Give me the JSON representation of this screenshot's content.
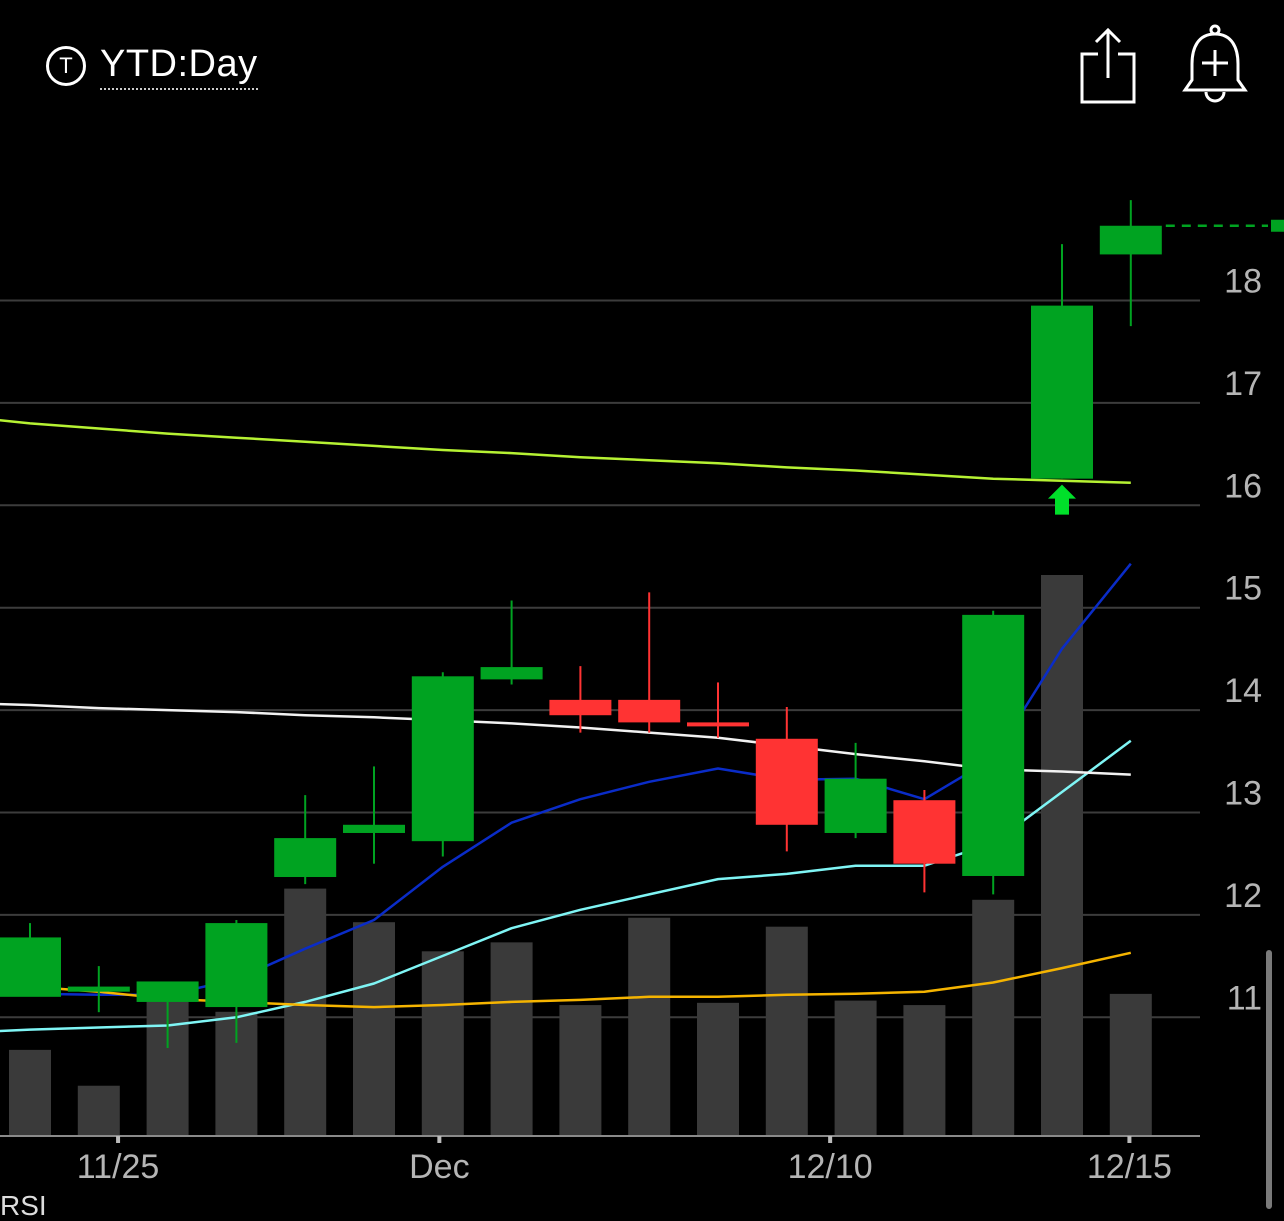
{
  "header": {
    "range_icon": "T",
    "range_label": "YTD:Day",
    "share_icon": "share-icon",
    "alert_icon": "bell-plus-icon"
  },
  "footer": {
    "rsi_label": "RSI"
  },
  "chart_data": {
    "type": "candlestick",
    "x_tick_labels": [
      "11/25",
      "Dec",
      "12/10",
      "12/15"
    ],
    "y_tick_labels": [
      "18",
      "17",
      "16",
      "15",
      "14",
      "13",
      "12",
      "11"
    ],
    "ylim": [
      9.8,
      19.6
    ],
    "grid": true,
    "colors": {
      "up": "#00A321",
      "down": "#FF3333",
      "volume": "#3A3A3A",
      "grid": "#3c3c3c",
      "axis_text": "#b5b5b5"
    },
    "candles": [
      {
        "o": 11.2,
        "h": 11.92,
        "l": 11.25,
        "c": 11.78
      },
      {
        "o": 11.25,
        "h": 11.5,
        "l": 11.05,
        "c": 11.3
      },
      {
        "o": 11.15,
        "h": 11.35,
        "l": 10.7,
        "c": 11.35
      },
      {
        "o": 11.1,
        "h": 11.95,
        "l": 10.75,
        "c": 11.92
      },
      {
        "o": 12.37,
        "h": 13.17,
        "l": 12.3,
        "c": 12.75
      },
      {
        "o": 12.8,
        "h": 13.45,
        "l": 12.5,
        "c": 12.88
      },
      {
        "o": 12.72,
        "h": 14.37,
        "l": 12.57,
        "c": 14.33
      },
      {
        "o": 14.3,
        "h": 15.07,
        "l": 14.25,
        "c": 14.42
      },
      {
        "o": 14.1,
        "h": 14.43,
        "l": 13.78,
        "c": 13.95
      },
      {
        "o": 14.1,
        "h": 15.15,
        "l": 13.78,
        "c": 13.88
      },
      {
        "o": 13.88,
        "h": 14.27,
        "l": 13.73,
        "c": 13.85
      },
      {
        "o": 13.72,
        "h": 14.03,
        "l": 12.62,
        "c": 12.88
      },
      {
        "o": 12.8,
        "h": 13.68,
        "l": 12.75,
        "c": 13.33
      },
      {
        "o": 13.12,
        "h": 13.22,
        "l": 12.22,
        "c": 12.5
      },
      {
        "o": 12.38,
        "h": 14.97,
        "l": 12.2,
        "c": 14.93
      },
      {
        "o": 16.26,
        "h": 18.55,
        "l": 16.26,
        "c": 17.95
      },
      {
        "o": 18.45,
        "h": 18.98,
        "l": 17.75,
        "c": 18.73
      }
    ],
    "volume": [
      0.38,
      0.22,
      0.62,
      0.55,
      1.1,
      0.95,
      0.82,
      0.86,
      0.58,
      0.97,
      0.59,
      0.93,
      0.6,
      0.58,
      1.05,
      2.5,
      0.63
    ],
    "last_price": 18.73,
    "signal_arrow": {
      "index": 15,
      "direction": "up",
      "color": "#00E02A"
    },
    "moving_averages": [
      {
        "color": "#0A2CC8",
        "points": [
          [
            -1,
            11.23
          ],
          [
            0,
            11.23
          ],
          [
            1,
            11.22
          ],
          [
            2,
            11.22
          ],
          [
            3,
            11.37
          ],
          [
            4,
            11.67
          ],
          [
            5,
            11.95
          ],
          [
            6,
            12.47
          ],
          [
            7,
            12.9
          ],
          [
            8,
            13.13
          ],
          [
            9,
            13.3
          ],
          [
            10,
            13.43
          ],
          [
            11,
            13.32
          ],
          [
            12,
            13.33
          ],
          [
            13,
            13.13
          ],
          [
            14,
            13.53
          ],
          [
            15,
            14.6
          ],
          [
            16,
            15.43
          ]
        ]
      },
      {
        "color": "#7FF5F5",
        "points": [
          [
            -1,
            10.85
          ],
          [
            0,
            10.88
          ],
          [
            1,
            10.9
          ],
          [
            2,
            10.92
          ],
          [
            3,
            11.0
          ],
          [
            4,
            11.15
          ],
          [
            5,
            11.33
          ],
          [
            6,
            11.6
          ],
          [
            7,
            11.87
          ],
          [
            8,
            12.05
          ],
          [
            9,
            12.2
          ],
          [
            10,
            12.35
          ],
          [
            11,
            12.4
          ],
          [
            12,
            12.48
          ],
          [
            13,
            12.48
          ],
          [
            14,
            12.7
          ],
          [
            15,
            13.2
          ],
          [
            16,
            13.7
          ]
        ]
      },
      {
        "color": "#F2F2F2",
        "points": [
          [
            -1,
            14.07
          ],
          [
            0,
            14.05
          ],
          [
            1,
            14.02
          ],
          [
            2,
            14.0
          ],
          [
            3,
            13.98
          ],
          [
            4,
            13.95
          ],
          [
            5,
            13.93
          ],
          [
            6,
            13.9
          ],
          [
            7,
            13.87
          ],
          [
            8,
            13.83
          ],
          [
            9,
            13.78
          ],
          [
            10,
            13.73
          ],
          [
            11,
            13.65
          ],
          [
            12,
            13.57
          ],
          [
            13,
            13.5
          ],
          [
            14,
            13.42
          ],
          [
            15,
            13.4
          ],
          [
            16,
            13.37
          ]
        ]
      },
      {
        "color": "#F5B400",
        "points": [
          [
            -1,
            11.33
          ],
          [
            0,
            11.3
          ],
          [
            1,
            11.25
          ],
          [
            2,
            11.18
          ],
          [
            3,
            11.15
          ],
          [
            4,
            11.12
          ],
          [
            5,
            11.1
          ],
          [
            6,
            11.12
          ],
          [
            7,
            11.15
          ],
          [
            8,
            11.17
          ],
          [
            9,
            11.2
          ],
          [
            10,
            11.2
          ],
          [
            11,
            11.22
          ],
          [
            12,
            11.23
          ],
          [
            13,
            11.25
          ],
          [
            14,
            11.34
          ],
          [
            15,
            11.48
          ],
          [
            16,
            11.63
          ]
        ]
      },
      {
        "color": "#B6F233",
        "points": [
          [
            -1,
            16.87
          ],
          [
            0,
            16.8
          ],
          [
            1,
            16.75
          ],
          [
            2,
            16.7
          ],
          [
            3,
            16.66
          ],
          [
            4,
            16.62
          ],
          [
            5,
            16.58
          ],
          [
            6,
            16.54
          ],
          [
            7,
            16.51
          ],
          [
            8,
            16.47
          ],
          [
            9,
            16.44
          ],
          [
            10,
            16.41
          ],
          [
            11,
            16.37
          ],
          [
            12,
            16.34
          ],
          [
            13,
            16.3
          ],
          [
            14,
            16.26
          ],
          [
            15,
            16.24
          ],
          [
            16,
            16.22
          ]
        ]
      }
    ]
  }
}
